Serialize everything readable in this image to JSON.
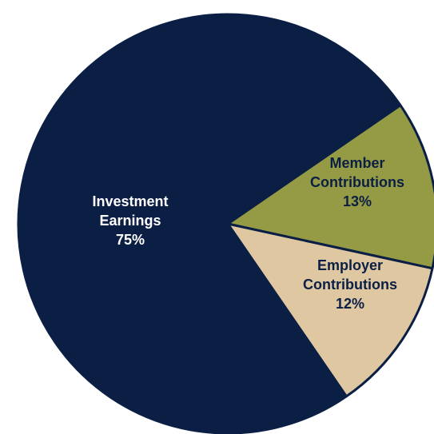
{
  "chart_data": {
    "type": "pie",
    "title": "",
    "slices": [
      {
        "label_lines": [
          "Investment",
          "Earnings"
        ],
        "value": 75,
        "value_label": "75%",
        "color": "#0b1f45",
        "text_color": "#ffffff"
      },
      {
        "label_lines": [
          "Member",
          "Contributions"
        ],
        "value": 13,
        "value_label": "13%",
        "color": "#959a44",
        "text_color": "#0b1f45"
      },
      {
        "label_lines": [
          "Employer",
          "Contributions"
        ],
        "value": 12,
        "value_label": "12%",
        "color": "#dfc8a1",
        "text_color": "#0b1f45"
      }
    ],
    "border_color": "#0b1f45"
  }
}
